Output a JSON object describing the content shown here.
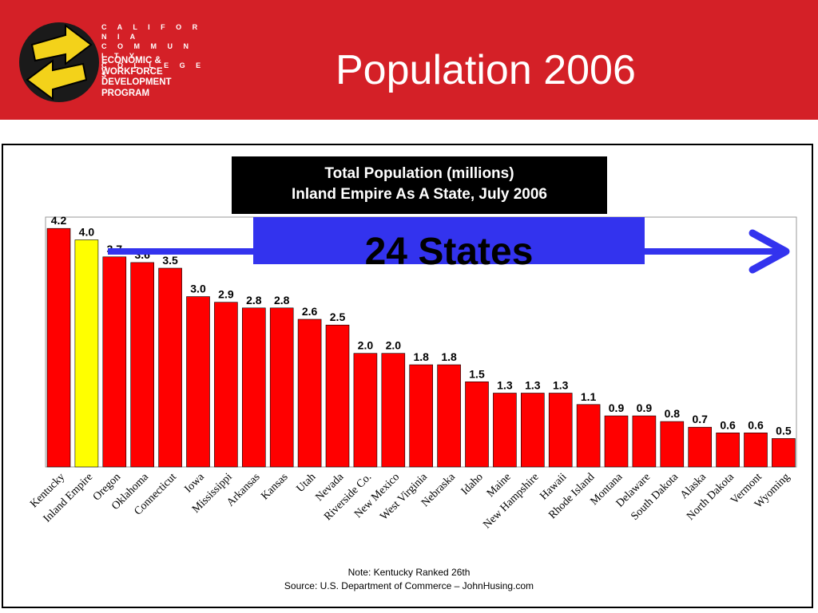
{
  "header": {
    "title": "Population 2006",
    "logo_org_lines": "C A L I F O R N I A\nC O M M U N I T Y\nC O L L E G E S",
    "logo_program_lines": "ECONOMIC &\nWORKFORCE\nDEVELOPMENT\nPROGRAM",
    "background_color": "#d42027"
  },
  "chart_title": {
    "line1": "Total Population (millions)",
    "line2": "Inland Empire As A State, July 2006"
  },
  "callout": {
    "label": "24 States",
    "box_color": "#3333ee",
    "arrow_color": "#3333ee"
  },
  "footer": {
    "note": "Note:  Kentucky Ranked 26th",
    "source": "Source: U.S. Department of Commerce – JohnHusing.com"
  },
  "chart_data": {
    "type": "bar",
    "categories": [
      "Kentucky",
      "Inland Empire",
      "Oregon",
      "Oklahoma",
      "Connecticut",
      "Iowa",
      "Mississippi",
      "Arkansas",
      "Kansas",
      "Utah",
      "Nevada",
      "Riverside Co.",
      "New Mexico",
      "West Virginia",
      "Nebraska",
      "Idaho",
      "Maine",
      "New Hampshire",
      "Hawaii",
      "Rhode Island",
      "Montana",
      "Delaware",
      "South Dakota",
      "Alaska",
      "North Dakota",
      "Vermont",
      "Wyoming"
    ],
    "values": [
      4.2,
      4.0,
      3.7,
      3.6,
      3.5,
      3.0,
      2.9,
      2.8,
      2.8,
      2.6,
      2.5,
      2.0,
      2.0,
      1.8,
      1.8,
      1.5,
      1.3,
      1.3,
      1.3,
      1.1,
      0.9,
      0.9,
      0.8,
      0.7,
      0.6,
      0.6,
      0.5
    ],
    "value_labels": [
      "4.2",
      "4.0",
      "3.7",
      "3.6",
      "3.5",
      "3.0",
      "2.9",
      "2.8",
      "2.8",
      "2.6",
      "2.5",
      "2.0",
      "2.0",
      "1.8",
      "1.8",
      "1.5",
      "1.3",
      "1.3",
      "1.3",
      "1.1",
      "0.9",
      "0.9",
      "0.8",
      "0.7",
      "0.6",
      "0.6",
      "0.5"
    ],
    "highlight_index": 1,
    "bar_color": "#ff0000",
    "highlight_color": "#ffff00",
    "ylim": [
      0,
      4.4
    ],
    "grid": false,
    "legend": "none"
  }
}
